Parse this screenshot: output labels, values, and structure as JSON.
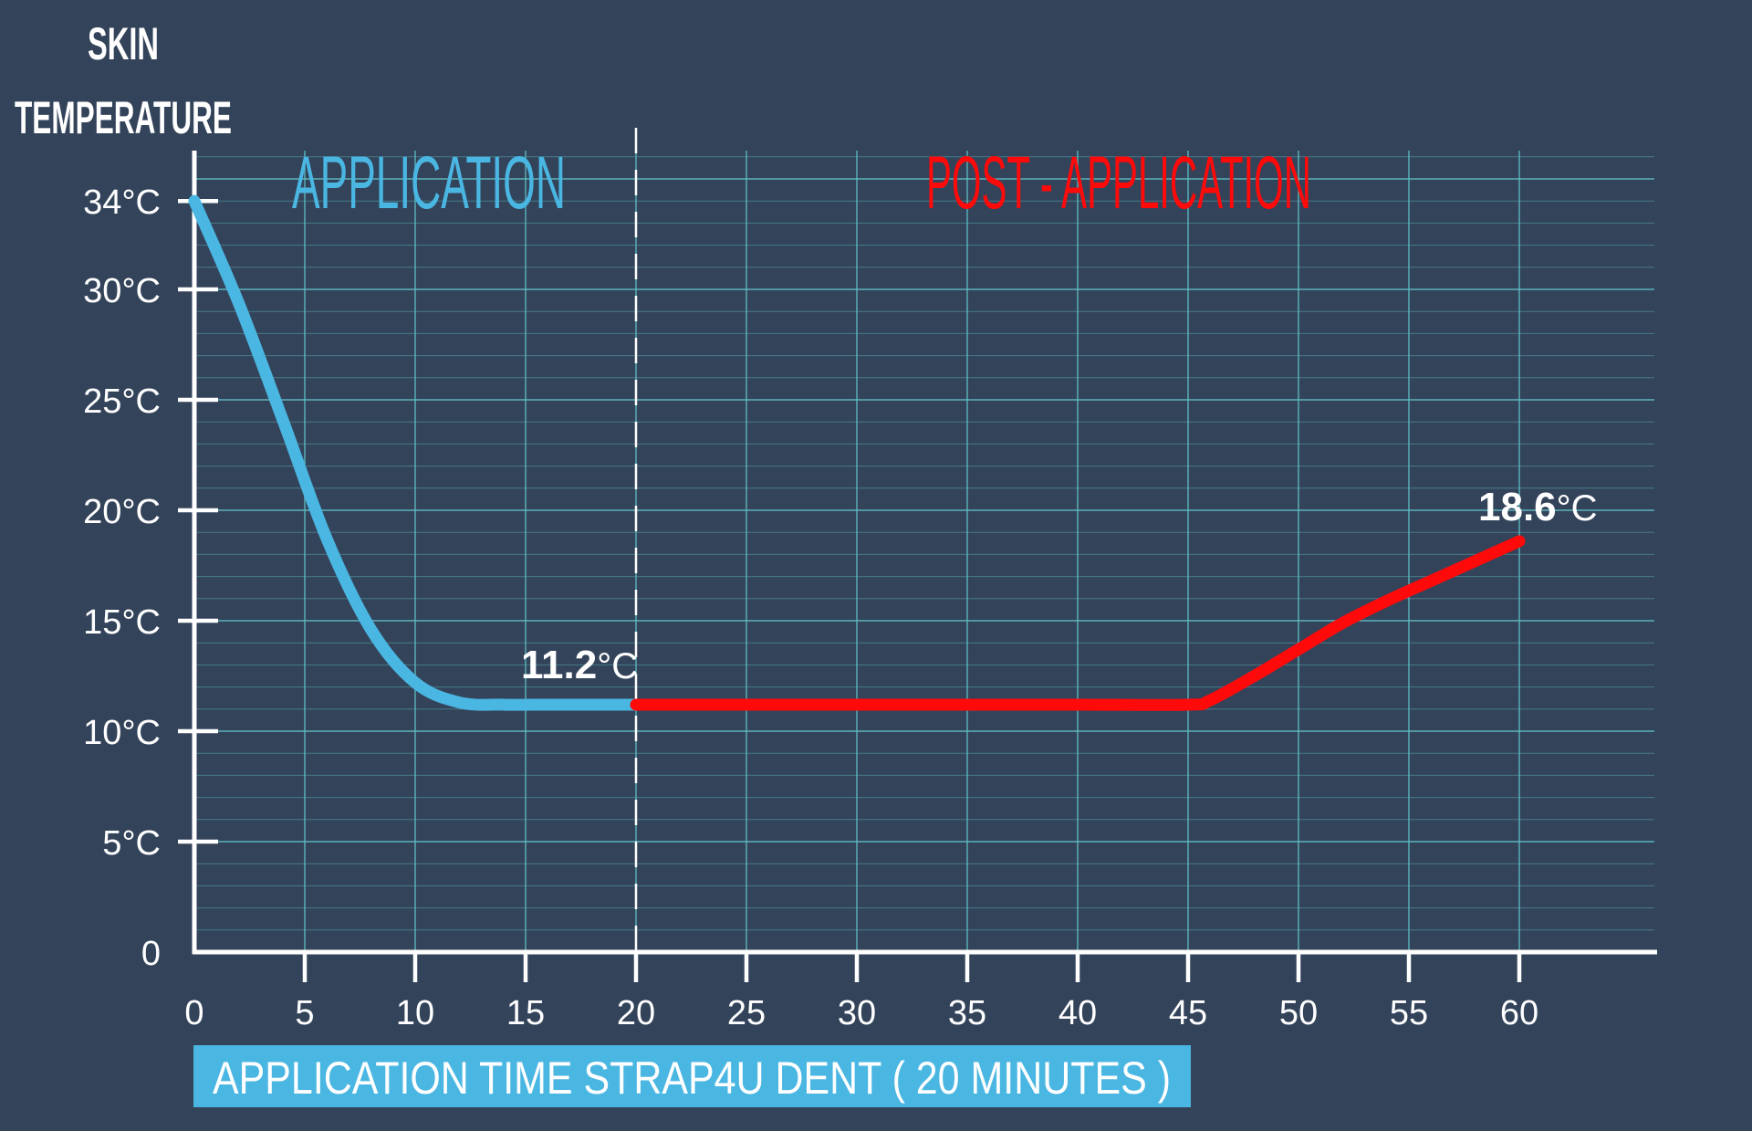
{
  "colors": {
    "background": "#33435a",
    "grid": "#5fbfc4",
    "axis": "#ffffff",
    "application": "#4ab6e2",
    "post_application": "#ff0a0a",
    "text": "#ffffff",
    "badge_bg": "#4ab6e2"
  },
  "chart_data": {
    "type": "line",
    "ylabel_line1": "SKIN",
    "ylabel_line2": "TEMPERATURE",
    "x_ticks": [
      "0",
      "5",
      "10",
      "15",
      "20",
      "25",
      "30",
      "35",
      "40",
      "45",
      "50",
      "55",
      "60"
    ],
    "y_ticks": [
      "0",
      "5°C",
      "10°C",
      "15°C",
      "20°C",
      "25°C",
      "30°C",
      "34°C"
    ],
    "y_tick_values": [
      0,
      5,
      10,
      15,
      20,
      25,
      30,
      34
    ],
    "xlim": [
      0,
      66
    ],
    "ylim": [
      0,
      36
    ],
    "grid": true,
    "phase_divider_x": 20,
    "phases": [
      {
        "label": "APPLICATION",
        "x_range": [
          0,
          20
        ]
      },
      {
        "label": "POST - APPLICATION",
        "x_range": [
          20,
          60
        ]
      }
    ],
    "series": [
      {
        "phase": "application",
        "x": [
          0,
          2,
          4,
          6,
          8,
          10,
          12,
          14,
          16,
          18,
          20
        ],
        "y": [
          34,
          29.4,
          24.1,
          18.7,
          14.6,
          12.2,
          11.3,
          11.2,
          11.2,
          11.2,
          11.2
        ]
      },
      {
        "phase": "post-application",
        "x": [
          20,
          25,
          30,
          35,
          40,
          45,
          46,
          48,
          50,
          52,
          54,
          56,
          58,
          60
        ],
        "y": [
          11.2,
          11.2,
          11.2,
          11.2,
          11.2,
          11.2,
          11.4,
          12.5,
          13.7,
          14.9,
          15.9,
          16.8,
          17.7,
          18.6
        ]
      }
    ],
    "annotations": [
      {
        "bold": "11.2",
        "unit": "°C",
        "x": 20,
        "y": 11.2
      },
      {
        "bold": "18.6",
        "unit": "°C",
        "x": 60,
        "y": 18.6
      }
    ]
  },
  "footer_badge": "APPLICATION TIME  STRAP4U DENT  ( 20 MINUTES )"
}
